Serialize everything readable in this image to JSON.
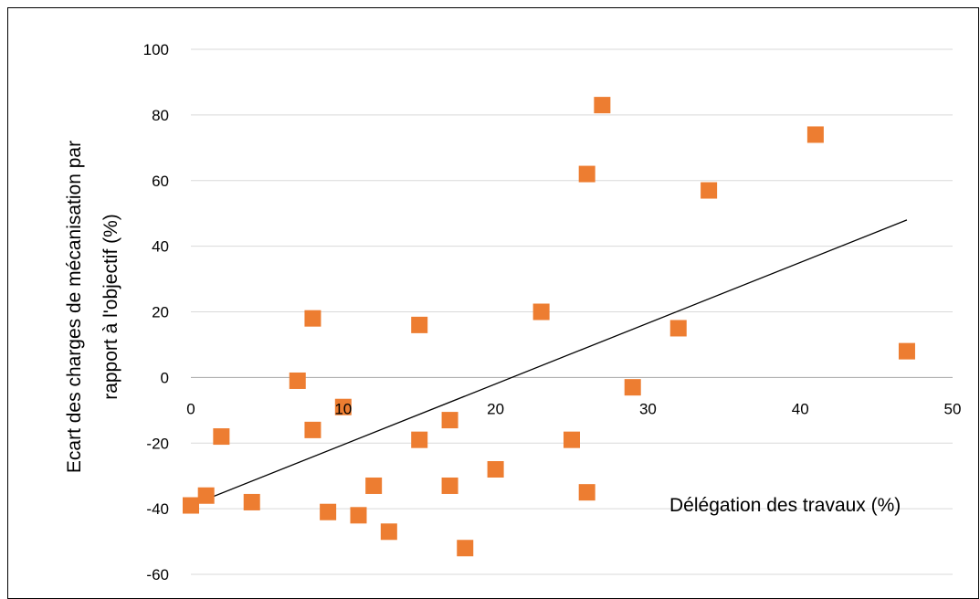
{
  "chart_data": {
    "type": "scatter",
    "title": "",
    "xlabel": "Délégation des travaux (%)",
    "ylabel_line1": "Ecart des charges de mécanisation par",
    "ylabel_line2": "rapport à l'objectif (%)",
    "xlim": [
      0,
      50
    ],
    "ylim": [
      -60,
      100
    ],
    "x_ticks": [
      0,
      10,
      20,
      30,
      40,
      50
    ],
    "y_ticks": [
      -60,
      -40,
      -20,
      0,
      20,
      40,
      60,
      80,
      100
    ],
    "grid": "horizontal",
    "legend": "none",
    "marker_color": "#ED7D31",
    "trendline_color": "#000000",
    "points": [
      {
        "x": 0,
        "y": -39
      },
      {
        "x": 1,
        "y": -36
      },
      {
        "x": 2,
        "y": -18
      },
      {
        "x": 4,
        "y": -38
      },
      {
        "x": 7,
        "y": -1
      },
      {
        "x": 8,
        "y": 18
      },
      {
        "x": 8,
        "y": -16
      },
      {
        "x": 9,
        "y": -41
      },
      {
        "x": 10,
        "y": -9
      },
      {
        "x": 11,
        "y": -42
      },
      {
        "x": 12,
        "y": -33
      },
      {
        "x": 13,
        "y": -47
      },
      {
        "x": 15,
        "y": 16
      },
      {
        "x": 15,
        "y": -19
      },
      {
        "x": 17,
        "y": -13
      },
      {
        "x": 17,
        "y": -33
      },
      {
        "x": 18,
        "y": -52
      },
      {
        "x": 20,
        "y": -28
      },
      {
        "x": 23,
        "y": 20
      },
      {
        "x": 25,
        "y": -19
      },
      {
        "x": 26,
        "y": 62
      },
      {
        "x": 26,
        "y": -35
      },
      {
        "x": 27,
        "y": 83
      },
      {
        "x": 29,
        "y": -3
      },
      {
        "x": 32,
        "y": 15
      },
      {
        "x": 34,
        "y": 57
      },
      {
        "x": 41,
        "y": 74
      },
      {
        "x": 47,
        "y": 8
      }
    ],
    "trendline": {
      "x": [
        0,
        47
      ],
      "y": [
        -39,
        48
      ]
    }
  }
}
